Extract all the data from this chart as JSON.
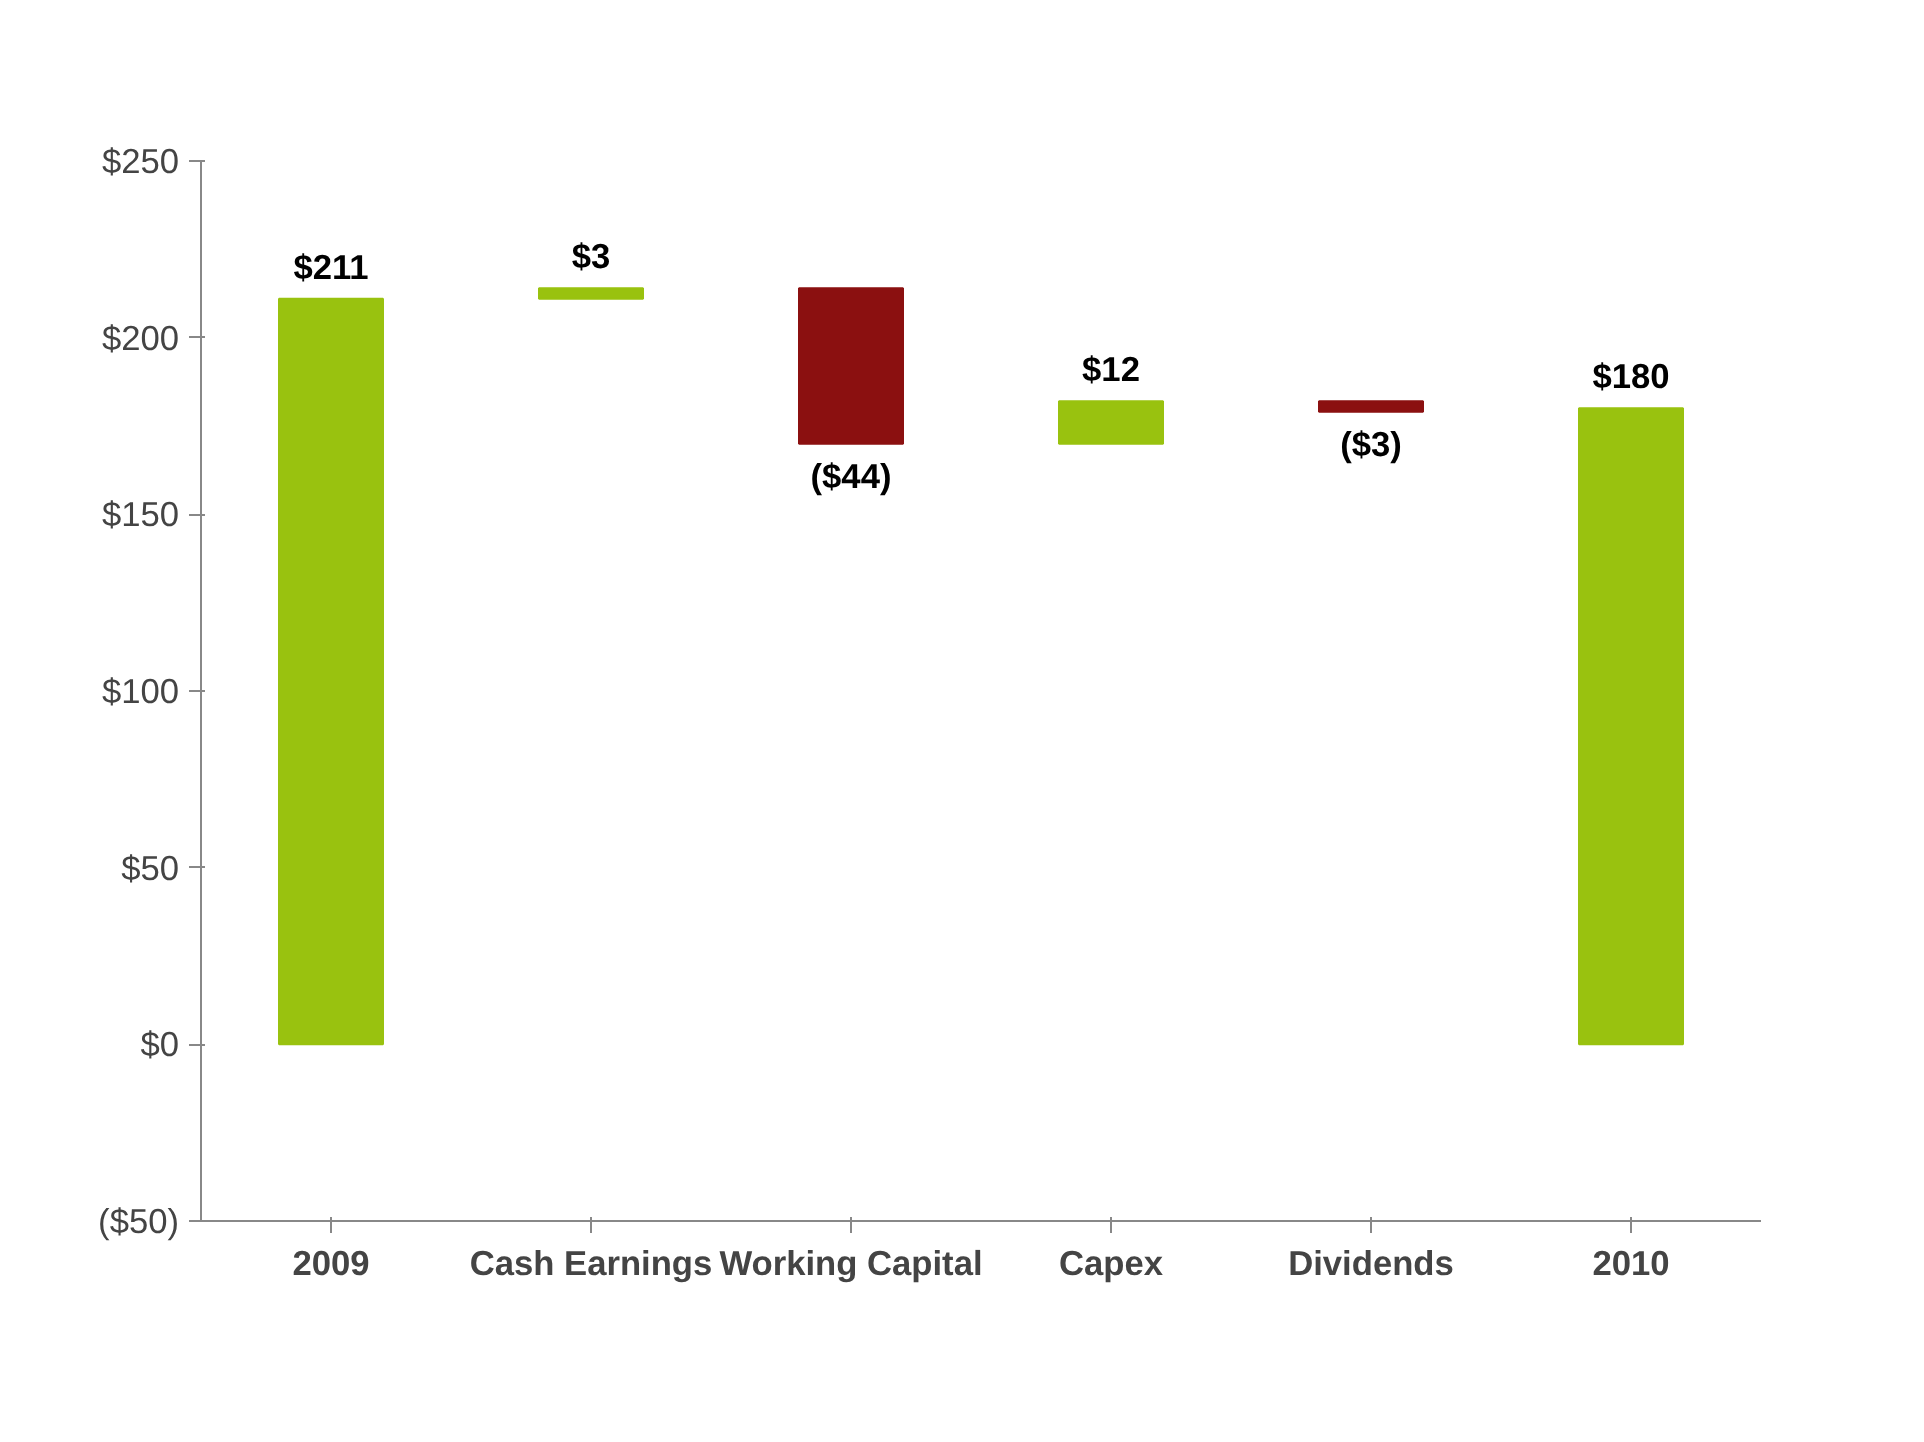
{
  "chart_data": {
    "type": "bar",
    "categories": [
      "2009",
      "Cash Earnings",
      "Working Capital",
      "Capex",
      "Dividends",
      "2010"
    ],
    "values": [
      211,
      3,
      -44,
      12,
      -3,
      180
    ],
    "base": [
      0,
      211,
      214,
      170,
      182,
      0
    ],
    "colors": [
      "#99c20f",
      "#99c20f",
      "#8b1010",
      "#99c20f",
      "#8b1010",
      "#99c20f"
    ],
    "value_labels": [
      "$211",
      "$3",
      "($44)",
      "$12",
      "($3)",
      "$180"
    ],
    "ylim": [
      -50,
      250
    ],
    "yticks": [
      {
        "value": -50,
        "label": "($50)"
      },
      {
        "value": 0,
        "label": "$0"
      },
      {
        "value": 50,
        "label": "$50"
      },
      {
        "value": 100,
        "label": "$100"
      },
      {
        "value": 150,
        "label": "$150"
      },
      {
        "value": 200,
        "label": "$200"
      },
      {
        "value": 250,
        "label": "$250"
      }
    ],
    "grid": false
  }
}
